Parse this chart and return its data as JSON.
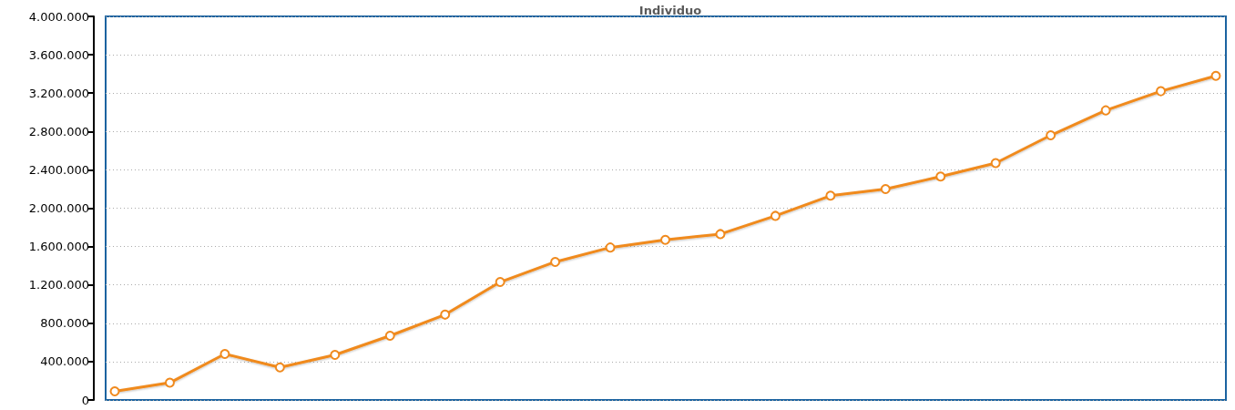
{
  "chart_data": {
    "type": "line",
    "title": "Individuo",
    "categories": [
      null,
      null,
      null,
      null,
      null,
      null,
      null,
      null,
      null,
      null,
      null,
      null,
      null,
      null,
      null,
      null,
      null,
      null,
      null,
      null,
      null
    ],
    "values": [
      90000,
      180000,
      480000,
      340000,
      470000,
      670000,
      890000,
      1230000,
      1440000,
      1590000,
      1670000,
      1730000,
      1920000,
      2130000,
      2200000,
      2330000,
      2470000,
      2760000,
      3020000,
      3220000,
      3380000
    ],
    "color": "#f08a1e",
    "ylim": [
      0,
      4000000
    ],
    "yticks": [
      0,
      {
        "value": 400000,
        "label": "400.000"
      },
      {
        "value": 800000,
        "label": "800.000"
      },
      {
        "value": 1200000,
        "label": "1.200.000"
      },
      {
        "value": 1600000,
        "label": "1.600.000"
      },
      {
        "value": 2000000,
        "label": "2.000.000"
      },
      {
        "value": 2400000,
        "label": "2.400.000"
      },
      {
        "value": 2800000,
        "label": "2.800.000"
      },
      {
        "value": 3200000,
        "label": "3.200.000"
      },
      {
        "value": 3600000,
        "label": "3.600.000"
      },
      {
        "value": 4000000,
        "label": "4.000.000"
      }
    ],
    "grid": "y",
    "marker": "circle",
    "line_style": "solid",
    "tick_labels": "y"
  }
}
